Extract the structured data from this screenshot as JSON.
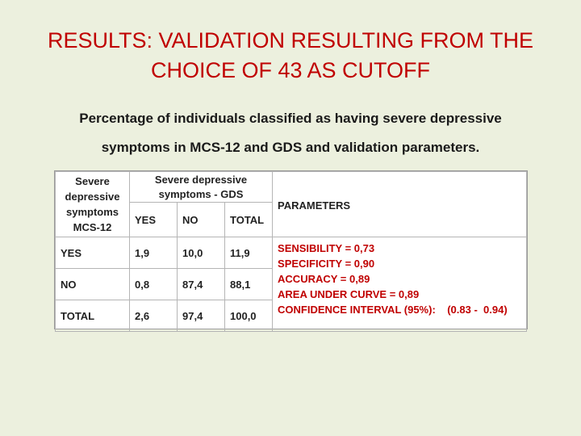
{
  "slide": {
    "title_line1": "RESULTS: VALIDATION RESULTING FROM THE",
    "title_line2": "CHOICE OF 43 AS CUTOFF",
    "subtitle_line1": "Percentage of individuals classified as having severe depressive",
    "subtitle_line2": "symptoms in MCS-12 and GDS and validation parameters."
  },
  "table": {
    "row_header": [
      "Severe",
      "depressive",
      "symptoms",
      "MCS-12"
    ],
    "gds_header": [
      "Severe depressive",
      "symptoms  - GDS"
    ],
    "col_headers": [
      "YES",
      "NO",
      "TOTAL"
    ],
    "params_header": "PARAMETERS",
    "rows": [
      {
        "label": "YES",
        "values": [
          "1,9",
          "10,0",
          "11,9"
        ]
      },
      {
        "label": "NO",
        "values": [
          "0,8",
          "87,4",
          "88,1"
        ]
      },
      {
        "label": "TOTAL",
        "values": [
          "2,6",
          "97,4",
          "100,0"
        ]
      }
    ],
    "parameters": [
      "SENSIBILITY = 0,73",
      "SPECIFICITY = 0,90",
      "ACCURACY = 0,89",
      "AREA UNDER CURVE = 0,89",
      "CONFIDENCE INTERVAL (95%):    (0.83 -  0.94)"
    ]
  }
}
